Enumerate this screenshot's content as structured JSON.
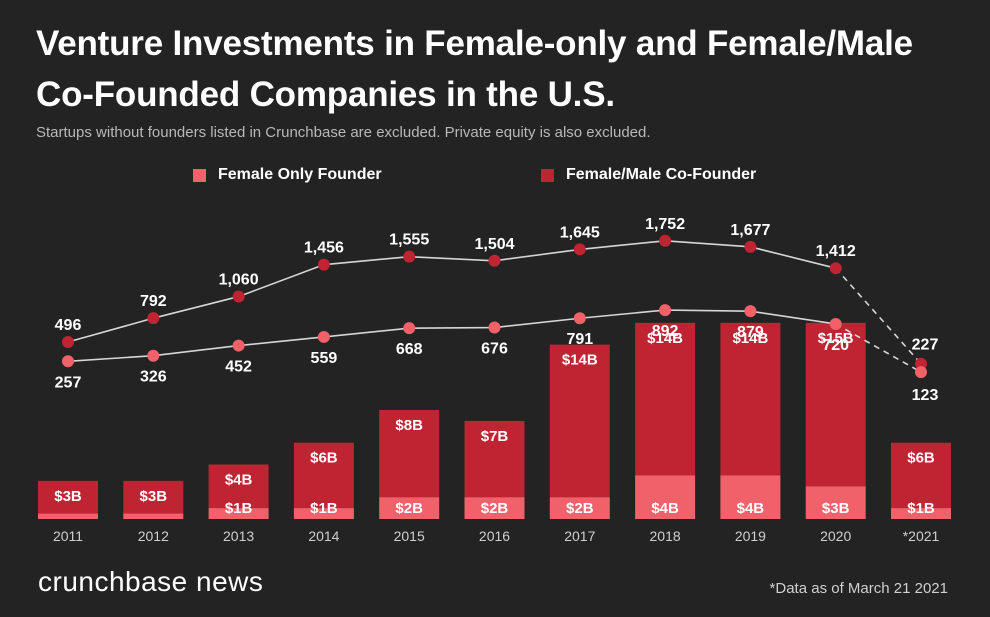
{
  "colors": {
    "background": "#232323",
    "female_only": "#f1616a",
    "co_founder": "#bf2433",
    "line": "#d6d6d6",
    "text": "#ffffff",
    "muted": "#b8b8b8"
  },
  "header": {
    "title": "Venture Investments in Female-only and Female/Male Co-Founded Companies in the U.S.",
    "subtitle": "Startups without founders listed in Crunchbase are excluded. Private equity is also excluded."
  },
  "legend": {
    "female_only": "Female Only Founder",
    "co_founder": "Female/Male Co-Founder"
  },
  "footer": {
    "brand": "crunchbase news",
    "footnote": "*Data as of March 21 2021"
  },
  "chart_data": {
    "type": "bar+line",
    "title": "Venture Investments in Female-only and Female/Male Co-Founded Companies in the U.S.",
    "categories": [
      "2011",
      "2012",
      "2013",
      "2014",
      "2015",
      "2016",
      "2017",
      "2018",
      "2019",
      "2020",
      "*2021"
    ],
    "bar_series": [
      {
        "name": "Female Only Founder",
        "unit": "$B",
        "values": [
          0.5,
          0.5,
          1,
          1,
          2,
          2,
          2,
          4,
          4,
          3,
          1
        ],
        "labels": [
          "",
          "",
          "$1B",
          "$1B",
          "$2B",
          "$2B",
          "$2B",
          "$4B",
          "$4B",
          "$3B",
          "$1B"
        ]
      },
      {
        "name": "Female/Male Co-Founder",
        "unit": "$B",
        "values": [
          3,
          3,
          4,
          6,
          8,
          7,
          14,
          14,
          14,
          15,
          6
        ],
        "labels": [
          "$3B",
          "$3B",
          "$4B",
          "$6B",
          "$8B",
          "$7B",
          "$14B",
          "$14B",
          "$14B",
          "$15B",
          "$6B"
        ]
      }
    ],
    "line_series": [
      {
        "name": "Female/Male Co-Founder deal count",
        "values": [
          496,
          792,
          1060,
          1456,
          1555,
          1504,
          1645,
          1752,
          1677,
          1412,
          227
        ],
        "labels": [
          "496",
          "792",
          "1,060",
          "1,456",
          "1,555",
          "1,504",
          "1,645",
          "1,752",
          "1,677",
          "1,412",
          "227"
        ]
      },
      {
        "name": "Female Only Founder deal count",
        "values": [
          257,
          326,
          452,
          559,
          668,
          676,
          791,
          892,
          879,
          720,
          123
        ],
        "labels": [
          "257",
          "326",
          "452",
          "559",
          "668",
          "676",
          "791",
          "892",
          "879",
          "720",
          "123"
        ]
      }
    ],
    "partial_year_dashed": "*2021"
  }
}
